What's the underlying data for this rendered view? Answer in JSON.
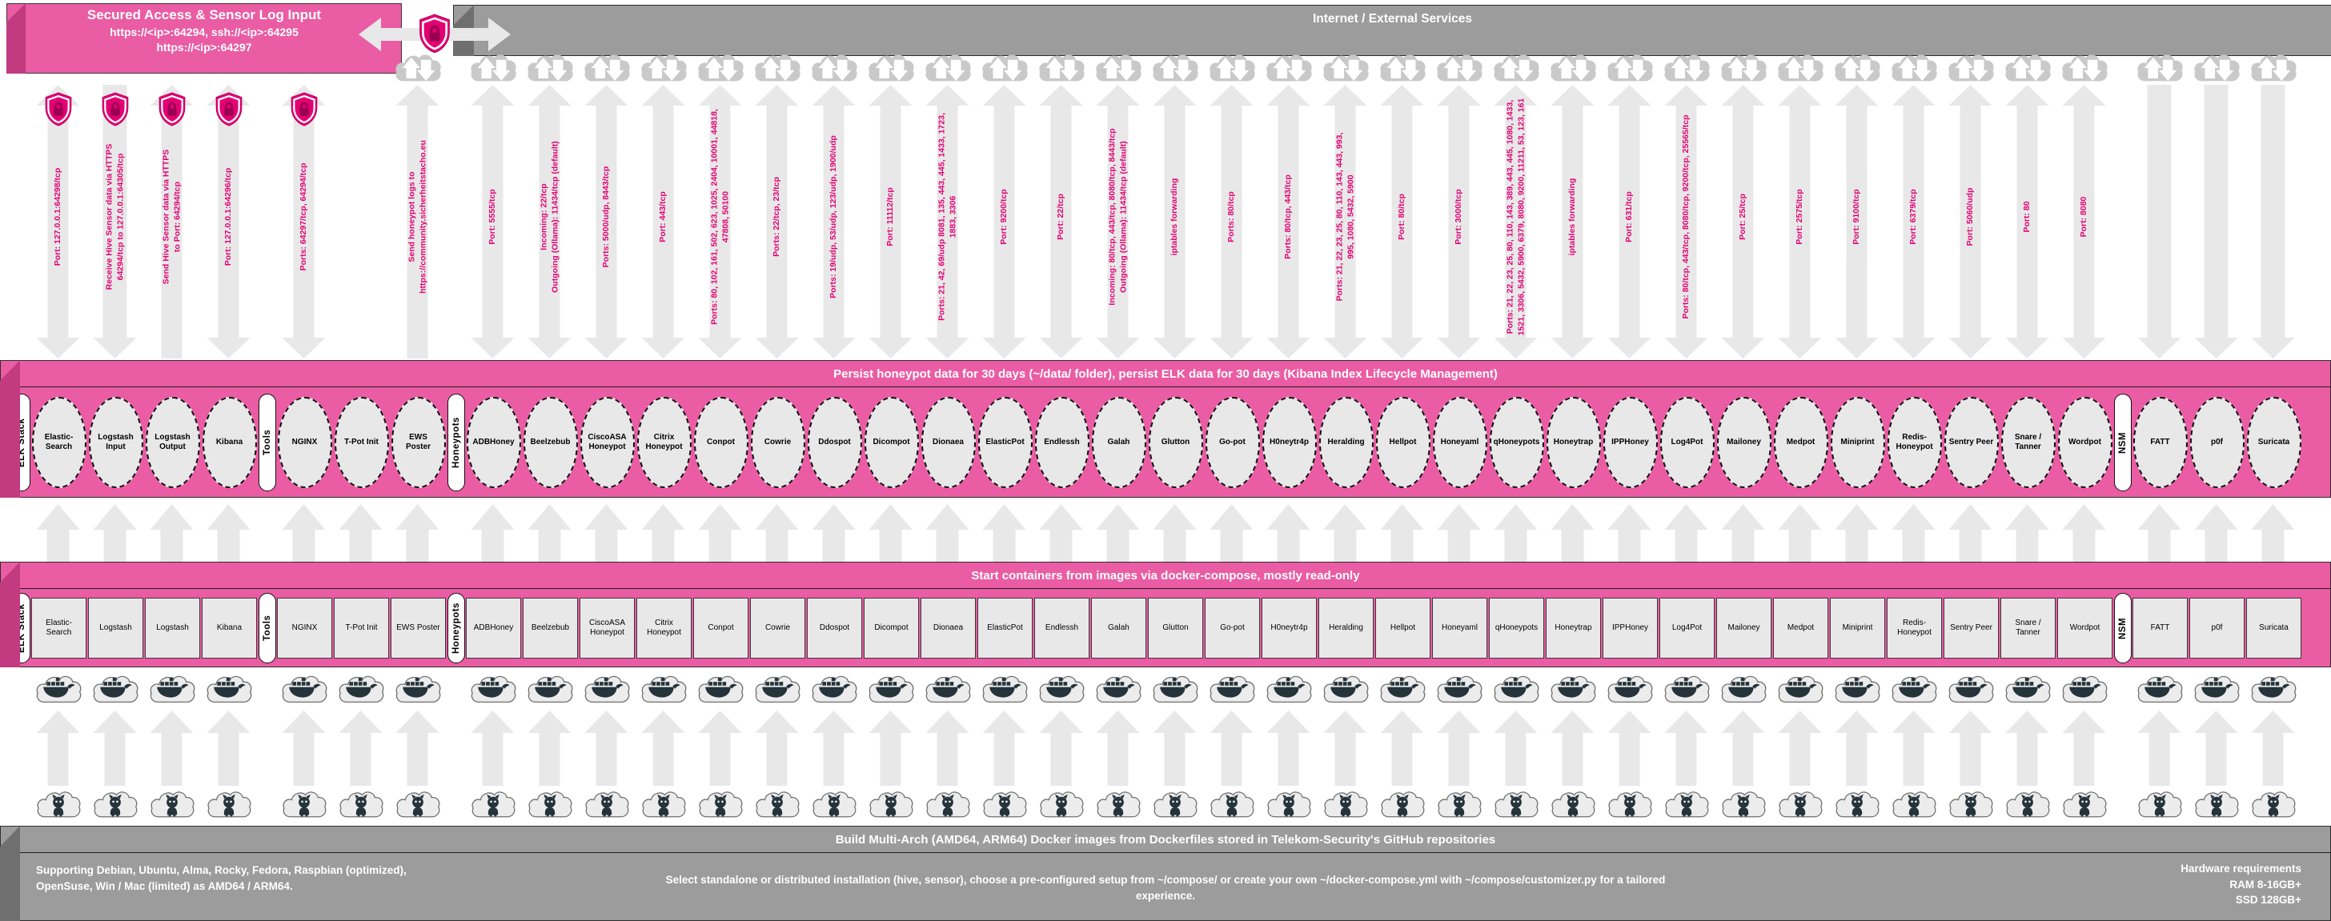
{
  "header": {
    "secured": {
      "title": "Secured Access & Sensor Log Input",
      "line1": "https://<ip>:64294, ssh://<ip>:64295",
      "line2": "https://<ip>:64297"
    },
    "internet": {
      "title": "Internet / External Services"
    }
  },
  "bars": {
    "persist_title": "Persist honeypot data for 30 days (~/data/ folder), persist ELK data for 30 days (Kibana Index Lifecycle Management)",
    "compose_title": "Start containers from images via docker-compose, mostly read-only",
    "build_title": "Build Multi-Arch (AMD64, ARM64) Docker images from Dockerfiles stored in Telekom-Security's GitHub repositories"
  },
  "footer": {
    "os_support": "Supporting Debian, Ubuntu, Alma, Rocky, Fedora, Raspbian (optimized), OpenSuse, Win / Mac (limited) as AMD64 / ARM64.",
    "install_info": "Select standalone or distributed installation (hive, sensor), choose a pre-configured setup from ~/compose/ or create your own ~/docker-compose.yml with ~/compose/customizer.py for a tailored experience.",
    "hw": {
      "title": "Hardware requirements",
      "ram": "RAM 8-16GB+",
      "ssd": "SSD 128GB+"
    }
  },
  "colors": {
    "magenta": "#E20074",
    "bar_pink": "#EA5CA3",
    "bar_pink_dark": "#C23A80",
    "bar_gray": "#9C9C9C",
    "arrow_fill": "#E8E8E8",
    "cloud_gray": "#C9C9C9",
    "icon_dark": "#25333B"
  },
  "icons": [
    "shield-lock-icon",
    "internet-cloud-icon",
    "docker-cloud-icon",
    "github-cloud-icon"
  ],
  "groups": [
    {
      "label": "ELK Stack",
      "services": [
        {
          "name": "Elastic-Search",
          "rect": "Elastic-Search",
          "arrow": {
            "heads": "both",
            "shield": true,
            "cloud": false,
            "lines": [
              "Port: 127.0.0.1:64298/tcp"
            ]
          }
        },
        {
          "name": "Logstash Input",
          "rect": "Logstash",
          "arrow": {
            "heads": "down",
            "shield": true,
            "cloud": false,
            "lines": [
              "Receive Hive Sensor data via HTTPS",
              "64294/tcp to 127.0.0.1:64305/tcp"
            ]
          }
        },
        {
          "name": "Logstash Output",
          "rect": "Logstash",
          "arrow": {
            "heads": "up",
            "shield": true,
            "cloud": false,
            "lines": [
              "Send Hive Sensor data via HTTPS",
              "to Port: 64294/tcp"
            ]
          }
        },
        {
          "name": "Kibana",
          "rect": "Kibana",
          "arrow": {
            "heads": "both",
            "shield": true,
            "cloud": false,
            "lines": [
              "Port: 127.0.0.1:64296/tcp"
            ]
          }
        }
      ]
    },
    {
      "label": "Tools",
      "services": [
        {
          "name": "NGINX",
          "rect": "NGINX",
          "arrow": {
            "heads": "both",
            "shield": true,
            "cloud": false,
            "lines": [
              "Ports: 64297/tcp, 64294/tcp"
            ]
          }
        },
        {
          "name": "T-Pot Init",
          "rect": "T-Pot Init",
          "arrow": null
        },
        {
          "name": "EWS Poster",
          "rect": "EWS Poster",
          "arrow": {
            "heads": "up",
            "shield": false,
            "cloud": true,
            "lines": [
              "Send honeypot logs to",
              "https://community.sicherheitstacho.eu"
            ]
          }
        }
      ]
    },
    {
      "label": "Honeypots",
      "services": [
        {
          "name": "ADBHoney",
          "rect": "ADBHoney",
          "arrow": {
            "heads": "both",
            "shield": false,
            "cloud": true,
            "lines": [
              "Port: 5555/tcp"
            ]
          }
        },
        {
          "name": "Beelzebub",
          "rect": "Beelzebub",
          "arrow": {
            "heads": "both",
            "shield": false,
            "cloud": true,
            "lines": [
              "Incoming: 22/tcp",
              "Outgoing (Ollama): 11434/tcp (default)"
            ]
          }
        },
        {
          "name": "CiscoASA Honeypot",
          "rect": "CiscoASA Honeypot",
          "arrow": {
            "heads": "both",
            "shield": false,
            "cloud": true,
            "lines": [
              "Ports: 5000/udp, 8443/tcp"
            ]
          }
        },
        {
          "name": "Citrix Honeypot",
          "rect": "Citrix Honeypot",
          "arrow": {
            "heads": "both",
            "shield": false,
            "cloud": true,
            "lines": [
              "Port: 443/tcp"
            ]
          }
        },
        {
          "name": "Conpot",
          "rect": "Conpot",
          "arrow": {
            "heads": "both",
            "shield": false,
            "cloud": true,
            "lines": [
              "Ports: 80, 102, 161, 502, 623, 1025, 2404, 10001, 44818,",
              "47808, 50100"
            ]
          }
        },
        {
          "name": "Cowrie",
          "rect": "Cowrie",
          "arrow": {
            "heads": "both",
            "shield": false,
            "cloud": true,
            "lines": [
              "Ports: 22/tcp, 23/tcp"
            ]
          }
        },
        {
          "name": "Ddospot",
          "rect": "Ddospot",
          "arrow": {
            "heads": "both",
            "shield": false,
            "cloud": true,
            "lines": [
              "Ports: 19/udp, 53/udp, 123/udp, 1900/udp"
            ]
          }
        },
        {
          "name": "Dicompot",
          "rect": "Dicompot",
          "arrow": {
            "heads": "both",
            "shield": false,
            "cloud": true,
            "lines": [
              "Port: 11112/tcp"
            ]
          }
        },
        {
          "name": "Dionaea",
          "rect": "Dionaea",
          "arrow": {
            "heads": "both",
            "shield": false,
            "cloud": true,
            "lines": [
              "Ports: 21, 42, 69/udp 8081, 135, 443, 445, 1433, 1723,",
              "1883, 3306"
            ]
          }
        },
        {
          "name": "ElasticPot",
          "rect": "ElasticPot",
          "arrow": {
            "heads": "both",
            "shield": false,
            "cloud": true,
            "lines": [
              "Port: 9200/tcp"
            ]
          }
        },
        {
          "name": "Endlessh",
          "rect": "Endlessh",
          "arrow": {
            "heads": "both",
            "shield": false,
            "cloud": true,
            "lines": [
              "Port: 22/tcp"
            ]
          }
        },
        {
          "name": "Galah",
          "rect": "Galah",
          "arrow": {
            "heads": "both",
            "shield": false,
            "cloud": true,
            "lines": [
              "Incoming: 80/tcp, 443/tcp, 8080/tcp, 8443/tcp",
              "Outgoing (Ollama): 11434/tcp (default)"
            ]
          }
        },
        {
          "name": "Glutton",
          "rect": "Glutton",
          "arrow": {
            "heads": "both",
            "shield": false,
            "cloud": true,
            "lines": [
              "iptables forwarding"
            ]
          }
        },
        {
          "name": "Go-pot",
          "rect": "Go-pot",
          "arrow": {
            "heads": "both",
            "shield": false,
            "cloud": true,
            "lines": [
              "Ports: 80/tcp"
            ]
          }
        },
        {
          "name": "H0neytr4p",
          "rect": "H0neytr4p",
          "arrow": {
            "heads": "both",
            "shield": false,
            "cloud": true,
            "lines": [
              "Ports: 80/tcp, 443/tcp"
            ]
          }
        },
        {
          "name": "Heralding",
          "rect": "Heralding",
          "arrow": {
            "heads": "both",
            "shield": false,
            "cloud": true,
            "lines": [
              "Ports: 21, 22, 23, 25, 80, 110, 143, 443, 993,",
              "995, 1080, 5432, 5900"
            ]
          }
        },
        {
          "name": "Hellpot",
          "rect": "Hellpot",
          "arrow": {
            "heads": "both",
            "shield": false,
            "cloud": true,
            "lines": [
              "Port: 80/tcp"
            ]
          }
        },
        {
          "name": "Honeyaml",
          "rect": "Honeyaml",
          "arrow": {
            "heads": "both",
            "shield": false,
            "cloud": true,
            "lines": [
              "Port: 3000/tcp"
            ]
          }
        },
        {
          "name": "qHoneypots",
          "rect": "qHoneypots",
          "arrow": {
            "heads": "both",
            "shield": false,
            "cloud": true,
            "lines": [
              "Ports: 21, 22, 23, 25, 80, 110, 143, 389, 443, 445, 1080, 1433,",
              "1521, 3306, 5432, 5900, 6379, 8080, 9200, 11211, 53, 123, 161"
            ]
          }
        },
        {
          "name": "Honeytrap",
          "rect": "Honeytrap",
          "arrow": {
            "heads": "both",
            "shield": false,
            "cloud": true,
            "lines": [
              "iptables forwarding"
            ]
          }
        },
        {
          "name": "IPPHoney",
          "rect": "IPPHoney",
          "arrow": {
            "heads": "both",
            "shield": false,
            "cloud": true,
            "lines": [
              "Port: 631/tcp"
            ]
          }
        },
        {
          "name": "Log4Pot",
          "rect": "Log4Pot",
          "arrow": {
            "heads": "both",
            "shield": false,
            "cloud": true,
            "lines": [
              "Ports: 80/tcp, 443/tcp, 8080/tcp, 9200/tcp, 25565/tcp"
            ]
          }
        },
        {
          "name": "Mailoney",
          "rect": "Mailoney",
          "arrow": {
            "heads": "both",
            "shield": false,
            "cloud": true,
            "lines": [
              "Port: 25/tcp"
            ]
          }
        },
        {
          "name": "Medpot",
          "rect": "Medpot",
          "arrow": {
            "heads": "both",
            "shield": false,
            "cloud": true,
            "lines": [
              "Port: 2575/tcp"
            ]
          }
        },
        {
          "name": "Miniprint",
          "rect": "Miniprint",
          "arrow": {
            "heads": "both",
            "shield": false,
            "cloud": true,
            "lines": [
              "Port: 9100/tcp"
            ]
          }
        },
        {
          "name": "Redis-Honeypot",
          "rect": "Redis-Honeypot",
          "arrow": {
            "heads": "both",
            "shield": false,
            "cloud": true,
            "lines": [
              "Port: 6379/tcp"
            ]
          }
        },
        {
          "name": "Sentry Peer",
          "rect": "Sentry Peer",
          "arrow": {
            "heads": "both",
            "shield": false,
            "cloud": true,
            "lines": [
              "Port: 5060/udp"
            ]
          }
        },
        {
          "name": "Snare / Tanner",
          "rect": "Snare / Tanner",
          "arrow": {
            "heads": "both",
            "shield": false,
            "cloud": true,
            "lines": [
              "Port: 80"
            ]
          }
        },
        {
          "name": "Wordpot",
          "rect": "Wordpot",
          "arrow": {
            "heads": "both",
            "shield": false,
            "cloud": true,
            "lines": [
              "Port: 8080"
            ]
          }
        }
      ]
    },
    {
      "label": "NSM",
      "services": [
        {
          "name": "FATT",
          "rect": "FATT",
          "arrow": {
            "heads": "down",
            "shield": false,
            "cloud": true,
            "lines": []
          }
        },
        {
          "name": "p0f",
          "rect": "p0f",
          "arrow": {
            "heads": "down",
            "shield": false,
            "cloud": true,
            "lines": []
          }
        },
        {
          "name": "Suricata",
          "rect": "Suricata",
          "arrow": {
            "heads": "down",
            "shield": false,
            "cloud": true,
            "lines": []
          }
        }
      ]
    }
  ]
}
